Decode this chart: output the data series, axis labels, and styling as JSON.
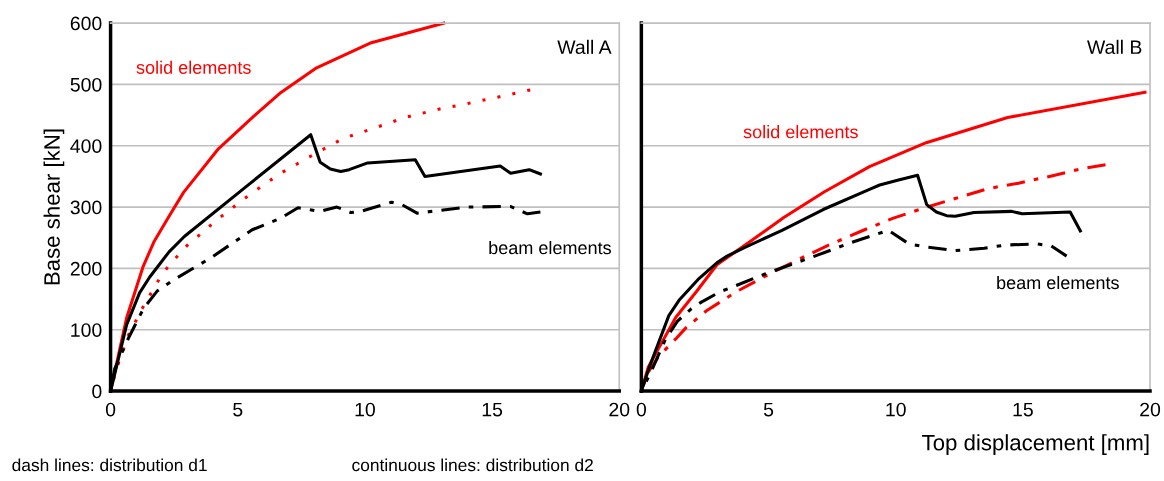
{
  "chart_data": [
    {
      "type": "line",
      "ylabel": "Base shear [kN]",
      "xlim": [
        0,
        20
      ],
      "ylim": [
        0,
        600
      ],
      "xticks": [
        0,
        5,
        10,
        15,
        20
      ],
      "yticks": [
        0,
        100,
        200,
        300,
        400,
        500,
        600
      ],
      "grid": "y",
      "marker": "none",
      "annotations": [
        "Wall A",
        "solid elements",
        "beam elements",
        "dash lines: distribution d1"
      ],
      "series": [
        {
          "color": "#ff0000",
          "line_style": "solid",
          "x": [
            0,
            0.63,
            1.27,
            1.7,
            2.3,
            2.87,
            4.24,
            5.57,
            6.7,
            8.1,
            10.25,
            13.1
          ],
          "values": [
            0,
            119,
            202,
            243,
            285,
            324,
            395,
            446,
            487,
            527,
            568,
            600
          ]
        },
        {
          "color": "#ff0000",
          "line_style": "dotted",
          "x": [
            0,
            0.23,
            0.7,
            1.25,
            1.96,
            2.3,
            3.0,
            4.24,
            5.46,
            6.68,
            7.91,
            9.15,
            10.38,
            11.58,
            12.83,
            14.05,
            15.3,
            16.5
          ],
          "values": [
            0,
            36,
            91,
            135,
            186,
            205,
            237,
            281,
            320,
            355,
            384,
            412,
            429,
            446,
            459,
            469,
            480,
            491
          ]
        },
        {
          "color": "#000000",
          "line_style": "solid",
          "x": [
            0,
            0.63,
            1.14,
            1.54,
            2.3,
            2.9,
            5.44,
            7.87,
            8.24,
            8.64,
            9.05,
            9.38,
            10.11,
            11.98,
            12.36,
            15.32,
            15.73,
            16.46,
            16.9
          ],
          "values": [
            0,
            108,
            160,
            186,
            227,
            252,
            337,
            418,
            373,
            362,
            358,
            361,
            372,
            377,
            350,
            367,
            355,
            361,
            354
          ]
        },
        {
          "color": "#000000",
          "line_style": "dashed",
          "x": [
            0,
            0.16,
            0.7,
            1.3,
            1.83,
            2.43,
            3.97,
            5.57,
            6.7,
            7.37,
            8.24,
            8.9,
            9.45,
            9.85,
            11.05,
            11.45,
            12.05,
            14.0,
            15.72,
            16.39,
            16.9
          ],
          "values": [
            0,
            36,
            86,
            135,
            163,
            180,
            218,
            263,
            282,
            299,
            293,
            300,
            291,
            293,
            308,
            304,
            290,
            300,
            301,
            289,
            292
          ]
        }
      ]
    },
    {
      "type": "line",
      "xlabel": "Top displacement [mm]",
      "xlim": [
        0,
        20
      ],
      "ylim": [
        0,
        600
      ],
      "xticks": [
        0,
        5,
        10,
        15,
        20
      ],
      "yticks": [
        0,
        100,
        200,
        300,
        400,
        500,
        600
      ],
      "grid": "y",
      "marker": "none",
      "tick_labels": "x",
      "annotations": [
        "Wall B",
        "solid elements",
        "beam elements",
        "continuous lines: distribution d2"
      ],
      "series": [
        {
          "color": "#ff0000",
          "line_style": "solid",
          "x": [
            0,
            0.27,
            1.35,
            2.16,
            2.97,
            4.25,
            5.6,
            7.2,
            8.97,
            11.2,
            14.4,
            19.8
          ],
          "values": [
            0,
            39,
            120,
            162,
            206,
            243,
            283,
            325,
            366,
            405,
            446,
            487
          ]
        },
        {
          "color": "#ff0000",
          "line_style": "dashed",
          "x": [
            0,
            0.27,
            0.67,
            1.35,
            1.75,
            2.56,
            3.78,
            4.99,
            6.2,
            7.42,
            8.66,
            9.91,
            11.15,
            12.34,
            13.62,
            14.83,
            16.05,
            17.26,
            18.25
          ],
          "values": [
            0,
            31,
            56,
            85,
            103,
            131,
            163,
            190,
            215,
            239,
            261,
            282,
            299,
            314,
            330,
            339,
            350,
            362,
            369
          ]
        },
        {
          "color": "#000000",
          "line_style": "solid",
          "x": [
            0,
            0.34,
            1.08,
            1.48,
            2.23,
            2.97,
            3.37,
            4.05,
            5.53,
            7.15,
            8.97,
            9.37,
            10.11,
            10.86,
            11.22,
            11.6,
            12.0,
            12.34,
            13.08,
            14.56,
            14.97,
            16.86,
            17.26
          ],
          "values": [
            0,
            42,
            123,
            148,
            182,
            209,
            220,
            234,
            262,
            296,
            329,
            336,
            344,
            352,
            304,
            292,
            286,
            285,
            291,
            293,
            289,
            292,
            261
          ]
        },
        {
          "color": "#000000",
          "line_style": "dashed",
          "x": [
            0,
            0.4,
            0.94,
            1.42,
            1.96,
            2.36,
            3.1,
            3.78,
            4.99,
            6.95,
            8.23,
            9.71,
            10.52,
            11.19,
            12.34,
            13.48,
            14.3,
            15.51,
            16.11,
            16.72
          ],
          "values": [
            0,
            33,
            84,
            114,
            134,
            145,
            162,
            173,
            193,
            222,
            242,
            262,
            240,
            235,
            229,
            233,
            238,
            240,
            237,
            220
          ]
        }
      ]
    }
  ]
}
